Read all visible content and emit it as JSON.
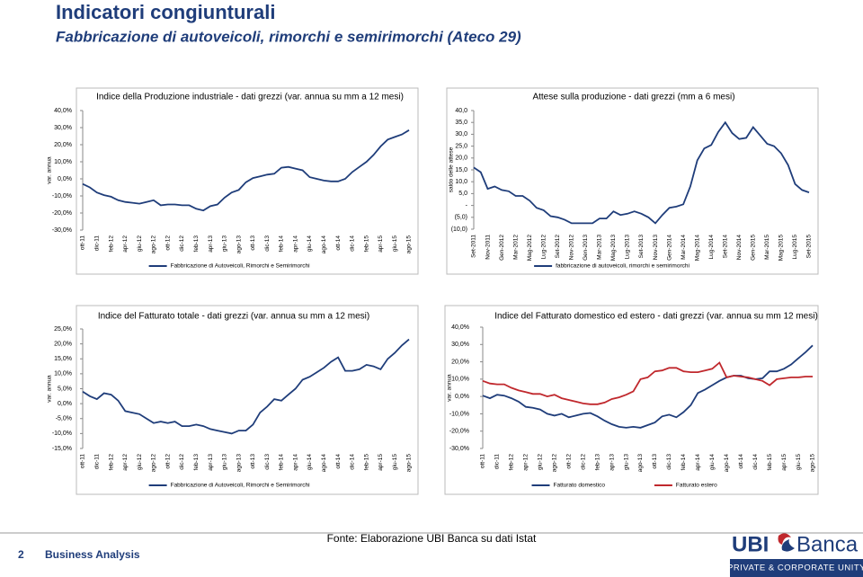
{
  "header": {
    "title": "Indicatori congiunturali",
    "subtitle": "Fabbricazione di autoveicoli, rimorchi e semirimorchi (Ateco 29)"
  },
  "footer": {
    "source": "Fonte: Elaborazione UBI Banca su dati Istat",
    "page": "2",
    "section": "Business Analysis",
    "brand": "UBI",
    "brand_suffix": "Banca",
    "tagline": "PRIVATE & CORPORATE UNITY"
  },
  "chart_data": [
    {
      "type": "line",
      "title": "Indice della Produzione industriale - dati grezzi (var. annua su mm a 12 mesi)",
      "y_label": "var. annua",
      "legend": "bottom",
      "categories": [
        "ott-11",
        null,
        "dic-11",
        null,
        "feb-12",
        null,
        "apr-12",
        null,
        "giu-12",
        null,
        "ago-12",
        null,
        "ott-12",
        null,
        "dic-12",
        null,
        "feb-13",
        null,
        "apr-13",
        null,
        "giu-13",
        null,
        "ago-13",
        null,
        "ott-13",
        null,
        "dic-13",
        null,
        "feb-14",
        null,
        "apr-14",
        null,
        "giu-14",
        null,
        "ago-14",
        null,
        "ott-14",
        null,
        "dic-14",
        null,
        "feb-15",
        null,
        "apr-15",
        null,
        "giu-15",
        null,
        "ago-15"
      ],
      "series": [
        {
          "name": "Fabbricazione di Autoveicoli, Rimorchi e Semirimorchi",
          "color": "#1f3d7a",
          "values": [
            -3,
            -5,
            -8,
            -9.5,
            -10.5,
            -12.5,
            -13.5,
            -14,
            -14.5,
            -13.5,
            -12.5,
            -15.5,
            -15,
            -15,
            -15.5,
            -15.5,
            -17.5,
            -18.5,
            -16,
            -15,
            -11,
            -8,
            -6.5,
            -2,
            0.5,
            1.5,
            2.5,
            3,
            6.5,
            7,
            6,
            5,
            1,
            0,
            -1,
            -1.5,
            -1.5,
            0,
            4,
            7,
            10,
            14,
            19,
            23,
            24.5,
            26,
            28.5
          ]
        }
      ],
      "ylim": [
        -30,
        40
      ],
      "yticks": [
        {
          "value": -30,
          "label": "-30,0%"
        },
        {
          "value": -20,
          "label": "-20,0%"
        },
        {
          "value": -10,
          "label": "-10,0%"
        },
        {
          "value": 0,
          "label": "0,0%"
        },
        {
          "value": 10,
          "label": "10,0%"
        },
        {
          "value": 20,
          "label": "20,0%"
        },
        {
          "value": 30,
          "label": "30,0%"
        },
        {
          "value": 40,
          "label": "40,0%"
        }
      ]
    },
    {
      "type": "line",
      "title": "Attese sulla produzione - dati grezzi (mm a 6 mesi)",
      "y_label": "saldo delle attese",
      "legend": "bottom",
      "categories": [
        "Set-2011",
        null,
        "Nov-2011",
        null,
        "Gen-2012",
        null,
        "Mar-2012",
        null,
        "Mag-2012",
        null,
        "Lug-2012",
        null,
        "Set-2012",
        null,
        "Nov-2012",
        null,
        "Gen-2013",
        null,
        "Mar-2013",
        null,
        "Mag-2013",
        null,
        "Lug-2013",
        null,
        "Set-2013",
        null,
        "Nov-2013",
        null,
        "Gen-2014",
        null,
        "Mar-2014",
        null,
        "Mag-2014",
        null,
        "Lug-2014",
        null,
        "Set-2014",
        null,
        "Nov-2014",
        null,
        "Gen-2015",
        null,
        "Mar-2015",
        null,
        "Mag-2015",
        null,
        "Lug-2015",
        null,
        "Set-2015"
      ],
      "series": [
        {
          "name": "fabbricazione di autoveicoli, rimorchi e semirimorchi",
          "color": "#1f3d7a",
          "values": [
            16,
            14,
            7,
            8,
            6.5,
            6,
            4,
            4,
            2,
            -1,
            -2,
            -4.5,
            -5,
            -6,
            -7.5,
            -7.5,
            -7.5,
            -7.5,
            -5.5,
            -5.5,
            -2.5,
            -4,
            -3.5,
            -2.5,
            -3.5,
            -5,
            -7.5,
            -4,
            -1,
            -0.5,
            0.5,
            8,
            19,
            24,
            25.5,
            31,
            35,
            30.5,
            28,
            28.5,
            33,
            29.5,
            26,
            25,
            22,
            17,
            9,
            6.5,
            5.5
          ]
        }
      ],
      "ylim": [
        -10,
        40
      ],
      "yticks": [
        {
          "value": -10,
          "label": "(10,0)"
        },
        {
          "value": -5,
          "label": "(5,0)"
        },
        {
          "value": 0,
          "label": "-"
        },
        {
          "value": 5,
          "label": "5,0"
        },
        {
          "value": 10,
          "label": "10,0"
        },
        {
          "value": 15,
          "label": "15,0"
        },
        {
          "value": 20,
          "label": "20,0"
        },
        {
          "value": 25,
          "label": "25,0"
        },
        {
          "value": 30,
          "label": "30,0"
        },
        {
          "value": 35,
          "label": "35,0"
        },
        {
          "value": 40,
          "label": "40,0"
        }
      ]
    },
    {
      "type": "line",
      "title": "Indice del Fatturato totale - dati grezzi (var. annua su mm a 12 mesi)",
      "y_label": "var. annua",
      "legend": "bottom",
      "categories": [
        "ott-11",
        null,
        "dic-11",
        null,
        "feb-12",
        null,
        "apr-12",
        null,
        "giu-12",
        null,
        "ago-12",
        null,
        "ott-12",
        null,
        "dic-12",
        null,
        "feb-13",
        null,
        "apr-13",
        null,
        "giu-13",
        null,
        "ago-13",
        null,
        "ott-13",
        null,
        "dic-13",
        null,
        "feb-14",
        null,
        "apr-14",
        null,
        "giu-14",
        null,
        "ago-14",
        null,
        "ott-14",
        null,
        "dic-14",
        null,
        "feb-15",
        null,
        "apr-15",
        null,
        "giu-15",
        null,
        "ago-15"
      ],
      "series": [
        {
          "name": "Fabbricazione di Autoveicoli, Rimorchi e Semirimorchi",
          "color": "#1f3d7a",
          "values": [
            4,
            2.5,
            1.5,
            3.5,
            3,
            1,
            -2.5,
            -3,
            -3.5,
            -5,
            -6.5,
            -6,
            -6.5,
            -6,
            -7.5,
            -7.5,
            -7,
            -7.5,
            -8.5,
            -9,
            -9.5,
            -10,
            -9,
            -9,
            -7,
            -3,
            -1,
            1.5,
            1,
            3,
            5,
            8,
            9,
            10.5,
            12,
            14,
            15.5,
            11,
            11,
            11.5,
            13,
            12.5,
            11.5,
            15,
            17,
            19.5,
            21.5
          ]
        }
      ],
      "ylim": [
        -15,
        25
      ],
      "yticks": [
        {
          "value": -15,
          "label": "-15,0%"
        },
        {
          "value": -10,
          "label": "-10,0%"
        },
        {
          "value": -5,
          "label": "-5,0%"
        },
        {
          "value": 0,
          "label": "0,0%"
        },
        {
          "value": 5,
          "label": "5,0%"
        },
        {
          "value": 10,
          "label": "10,0%"
        },
        {
          "value": 15,
          "label": "15,0%"
        },
        {
          "value": 20,
          "label": "20,0%"
        },
        {
          "value": 25,
          "label": "25,0%"
        }
      ]
    },
    {
      "type": "line",
      "title": "Indice del Fatturato domestico ed estero - dati grezzi (var. annua su mm 12 mesi)",
      "y_label": "var. annua",
      "legend": "bottom",
      "categories": [
        "ott-11",
        null,
        "dic-11",
        null,
        "feb-12",
        null,
        "apr-12",
        null,
        "giu-12",
        null,
        "ago-12",
        null,
        "ott-12",
        null,
        "dic-12",
        null,
        "feb-13",
        null,
        "apr-13",
        null,
        "giu-13",
        null,
        "ago-13",
        null,
        "ott-13",
        null,
        "dic-13",
        null,
        "feb-14",
        null,
        "apr-14",
        null,
        "giu-14",
        null,
        "ago-14",
        null,
        "ott-14",
        null,
        "dic-14",
        null,
        "feb-15",
        null,
        "apr-15",
        null,
        "giu-15",
        null,
        "ago-15"
      ],
      "series": [
        {
          "name": "Fatturato domestico",
          "color": "#1f3d7a",
          "values": [
            0.5,
            -1,
            1,
            0.5,
            -1,
            -3,
            -6,
            -6.5,
            -7.5,
            -10,
            -11,
            -10,
            -12,
            -11,
            -10,
            -9.5,
            -11.5,
            -14,
            -16,
            -17.5,
            -18,
            -17.5,
            -18,
            -16.5,
            -15,
            -11.5,
            -10.5,
            -12,
            -9,
            -5,
            2,
            4,
            6.5,
            9,
            11,
            12,
            12,
            10.5,
            10,
            10.5,
            14.5,
            14.5,
            16,
            18.5,
            22,
            25.5,
            29.5
          ]
        },
        {
          "name": "Fatturato estero",
          "color": "#c0282d",
          "values": [
            9,
            7.5,
            7,
            7,
            5,
            3.5,
            2.5,
            1.5,
            1.5,
            0,
            1,
            -1,
            -2,
            -3,
            -4,
            -4.5,
            -4.5,
            -3.5,
            -1.5,
            -0.5,
            1,
            3,
            10,
            11,
            14.5,
            15,
            16.5,
            16.5,
            14.5,
            14,
            14,
            15,
            16,
            19.5,
            11,
            12,
            11.5,
            11,
            10,
            9,
            6.5,
            10,
            10.5,
            11,
            11,
            11.5,
            11.5
          ]
        }
      ],
      "ylim": [
        -30,
        40
      ],
      "yticks": [
        {
          "value": -30,
          "label": "-30,0%"
        },
        {
          "value": -20,
          "label": "-20,0%"
        },
        {
          "value": -10,
          "label": "-10,0%"
        },
        {
          "value": 0,
          "label": "0,0%"
        },
        {
          "value": 10,
          "label": "10,0%"
        },
        {
          "value": 20,
          "label": "20,0%"
        },
        {
          "value": 30,
          "label": "30,0%"
        },
        {
          "value": 40,
          "label": "40,0%"
        }
      ]
    }
  ]
}
